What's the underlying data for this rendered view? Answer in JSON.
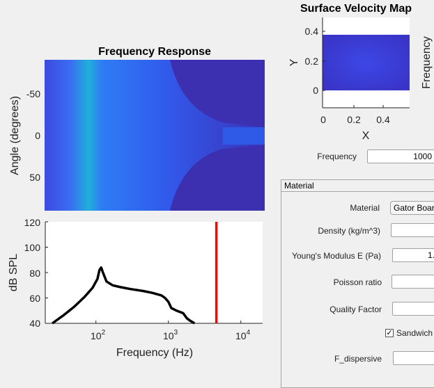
{
  "freq_response": {
    "title": "Frequency Response",
    "ylabel": "Angle (degrees)",
    "yticks": [
      "-50",
      "0",
      "50"
    ]
  },
  "spl_plot": {
    "ylabel": "dB SPL",
    "xlabel": "Frequency (Hz)",
    "yticks": [
      "120",
      "100",
      "80",
      "60",
      "40"
    ],
    "xticks": [
      {
        "base": "10",
        "exp": "2"
      },
      {
        "base": "10",
        "exp": "3"
      },
      {
        "base": "10",
        "exp": "4"
      }
    ],
    "marker_frequency": 4600,
    "line_color": "#000000",
    "marker_color": "#ff0000"
  },
  "velocity_map": {
    "title": "Surface Velocity Map",
    "ylabel": "Y",
    "xlabel": "X",
    "yticks": [
      "0.4",
      "0.2",
      "0"
    ],
    "xticks": [
      "0",
      "0.2",
      "0.4"
    ],
    "colorbar_label": "Frequency"
  },
  "controls": {
    "frequency_label": "Frequency",
    "frequency_value": "1000",
    "material_panel_title": "Material",
    "material_label": "Material",
    "material_value": "Gator Board",
    "density_label": "Density (kg/m^3)",
    "density_value": "",
    "youngs_label": "Young's Modulus E (Pa)",
    "youngs_value": "1.",
    "poisson_label": "Poisson ratio",
    "poisson_value": "",
    "quality_label": "Quality Factor",
    "quality_value": "",
    "sandwich_label": "Sandwich",
    "sandwich_checked": "✓",
    "fdisp_label": "F_dispersive",
    "fdisp_value": ""
  },
  "chart_data": [
    {
      "type": "heatmap",
      "title": "Frequency Response",
      "xlabel": "",
      "ylabel": "Angle (degrees)",
      "x_scale": "log",
      "xlim": [
        20,
        20000
      ],
      "ylim": [
        -90,
        90
      ],
      "y_ticks": [
        -50,
        0,
        50
      ]
    },
    {
      "type": "line",
      "title": "",
      "xlabel": "Frequency (Hz)",
      "ylabel": "dB SPL",
      "x_scale": "log",
      "xlim": [
        20,
        20000
      ],
      "ylim": [
        40,
        120
      ],
      "y_ticks": [
        40,
        60,
        80,
        100,
        120
      ],
      "series": [
        {
          "x": [
            25,
            35,
            50,
            70,
            90,
            105,
            112,
            118,
            125,
            140,
            170,
            220,
            300,
            450,
            600,
            800,
            900,
            1000,
            1100,
            1300,
            1600,
            1800,
            2000,
            2300
          ],
          "y": [
            40,
            46,
            53,
            61,
            68,
            75,
            82,
            84,
            80,
            73,
            70,
            68.5,
            67,
            65.5,
            64,
            62,
            60,
            57,
            52,
            50,
            48,
            44,
            42,
            40
          ]
        }
      ],
      "vline_x": 4600
    },
    {
      "type": "heatmap",
      "title": "Surface Velocity Map",
      "xlabel": "X",
      "ylabel": "Y",
      "xlim": [
        0,
        0.55
      ],
      "ylim": [
        -0.05,
        0.5
      ],
      "x_ticks": [
        0,
        0.2,
        0.4
      ],
      "y_ticks": [
        0,
        0.2,
        0.4
      ]
    }
  ]
}
